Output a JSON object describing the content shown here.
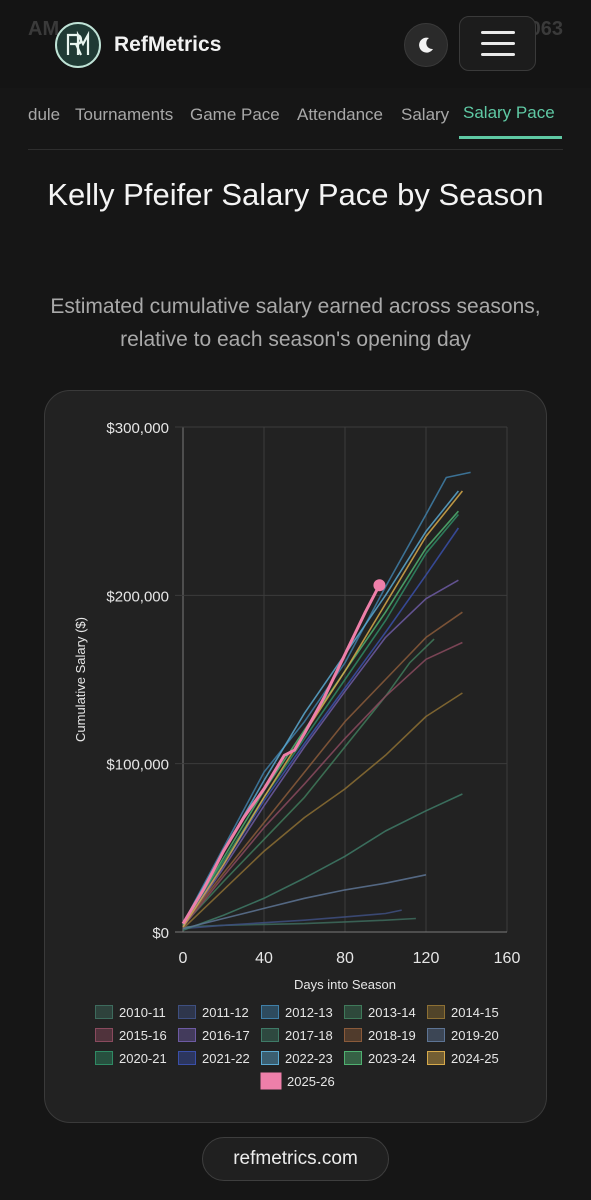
{
  "header": {
    "ghost_left": "AM",
    "ghost_right": "7,063",
    "brand": "RefMetrics",
    "logo_letters": "RM",
    "theme_toggle": "moon-icon",
    "menu_button": "menu-icon"
  },
  "tabs": [
    {
      "label": "dule",
      "active": false
    },
    {
      "label": "Tournaments",
      "active": false
    },
    {
      "label": "Game Pace",
      "active": false
    },
    {
      "label": "Attendance",
      "active": false
    },
    {
      "label": "Salary",
      "active": false
    },
    {
      "label": "Salary Pace",
      "active": true
    }
  ],
  "page": {
    "title": "Kelly Pfeifer Salary Pace by Season",
    "subtitle": "Estimated cumulative salary earned across seasons, relative to each season's opening day"
  },
  "footer": {
    "link": "refmetrics.com"
  },
  "colors": {
    "accent": "#5fc9a4",
    "highlight": "#ee7fa9"
  },
  "chart_data": {
    "type": "line",
    "xlabel": "Days into Season",
    "ylabel": "Cumulative Salary ($)",
    "xlim": [
      0,
      160
    ],
    "ylim": [
      0,
      300000
    ],
    "x_ticks": [
      "0",
      "40",
      "80",
      "120",
      "160"
    ],
    "y_ticks": [
      "$0",
      "$100,000",
      "$200,000",
      "$300,000"
    ],
    "grid": true,
    "legend_position": "bottom",
    "series": [
      {
        "name": "2010-11",
        "color": "#3d6b5d",
        "x": [
          0,
          20,
          40,
          60,
          80,
          100,
          115
        ],
        "y": [
          3000,
          4000,
          4500,
          5000,
          6000,
          7000,
          8000
        ]
      },
      {
        "name": "2011-12",
        "color": "#3e4f80",
        "x": [
          0,
          20,
          40,
          60,
          80,
          100,
          108
        ],
        "y": [
          2000,
          4000,
          5500,
          7000,
          9000,
          11000,
          13000
        ]
      },
      {
        "name": "2012-13",
        "color": "#3f7fa8",
        "x": [
          0,
          20,
          40,
          60,
          80,
          100,
          120,
          130,
          142
        ],
        "y": [
          5000,
          50000,
          95000,
          125000,
          160000,
          205000,
          248000,
          270000,
          273000
        ]
      },
      {
        "name": "2013-14",
        "color": "#3f7a5a",
        "x": [
          0,
          20,
          40,
          60,
          80,
          100,
          112,
          124
        ],
        "y": [
          4000,
          30000,
          55000,
          80000,
          110000,
          140000,
          160000,
          174000
        ]
      },
      {
        "name": "2014-15",
        "color": "#8c6f33",
        "x": [
          0,
          20,
          40,
          60,
          80,
          100,
          120,
          138
        ],
        "y": [
          2000,
          25000,
          48000,
          68000,
          85000,
          105000,
          128000,
          142000
        ]
      },
      {
        "name": "2015-16",
        "color": "#8a4a5e",
        "x": [
          0,
          20,
          40,
          60,
          80,
          100,
          120,
          138
        ],
        "y": [
          3000,
          33000,
          62000,
          88000,
          115000,
          140000,
          162000,
          172000
        ]
      },
      {
        "name": "2016-17",
        "color": "#6d5aa3",
        "x": [
          0,
          20,
          40,
          60,
          80,
          100,
          120,
          136
        ],
        "y": [
          3000,
          38000,
          75000,
          110000,
          143000,
          175000,
          198000,
          209000
        ]
      },
      {
        "name": "2017-18",
        "color": "#3e7a66",
        "x": [
          0,
          20,
          40,
          60,
          80,
          100,
          120,
          138
        ],
        "y": [
          1000,
          10000,
          20000,
          32000,
          45000,
          60000,
          72000,
          82000
        ]
      },
      {
        "name": "2018-19",
        "color": "#8a5a3a",
        "x": [
          0,
          20,
          40,
          60,
          80,
          100,
          120,
          138
        ],
        "y": [
          4000,
          35000,
          65000,
          95000,
          125000,
          150000,
          175000,
          190000
        ]
      },
      {
        "name": "2019-20",
        "color": "#5d7494",
        "x": [
          0,
          20,
          40,
          60,
          80,
          100,
          120
        ],
        "y": [
          2000,
          8000,
          14000,
          20000,
          25000,
          29000,
          34000
        ]
      },
      {
        "name": "2020-21",
        "color": "#2f8a64",
        "x": [
          0,
          20,
          40,
          60,
          80,
          100,
          120,
          136
        ],
        "y": [
          5000,
          42000,
          80000,
          115000,
          150000,
          185000,
          225000,
          248000
        ]
      },
      {
        "name": "2021-22",
        "color": "#3a4fa8",
        "x": [
          0,
          20,
          40,
          60,
          80,
          100,
          120,
          136
        ],
        "y": [
          4000,
          40000,
          78000,
          112000,
          145000,
          178000,
          212000,
          240000
        ]
      },
      {
        "name": "2022-23",
        "color": "#5aa8d0",
        "x": [
          0,
          20,
          40,
          60,
          80,
          100,
          120,
          136
        ],
        "y": [
          5000,
          48000,
          90000,
          130000,
          165000,
          200000,
          238000,
          262000
        ]
      },
      {
        "name": "2023-24",
        "color": "#4fb070",
        "x": [
          0,
          20,
          40,
          60,
          80,
          100,
          120,
          136
        ],
        "y": [
          4000,
          44000,
          84000,
          120000,
          155000,
          190000,
          228000,
          250000
        ]
      },
      {
        "name": "2024-25",
        "color": "#d6a94a",
        "x": [
          0,
          20,
          40,
          60,
          80,
          100,
          120,
          138
        ],
        "y": [
          3000,
          40000,
          80000,
          118000,
          155000,
          195000,
          235000,
          262000
        ]
      },
      {
        "name": "2025-26",
        "color": "#ee7fa9",
        "x": [
          0,
          10,
          20,
          30,
          40,
          50,
          55,
          60,
          70,
          80,
          90,
          97
        ],
        "y": [
          5000,
          25000,
          48000,
          68000,
          85000,
          105000,
          108000,
          118000,
          140000,
          165000,
          190000,
          206000
        ]
      }
    ],
    "annotations": [
      {
        "text": "latest point 2025-26",
        "x": 97,
        "y": 206000
      }
    ]
  }
}
